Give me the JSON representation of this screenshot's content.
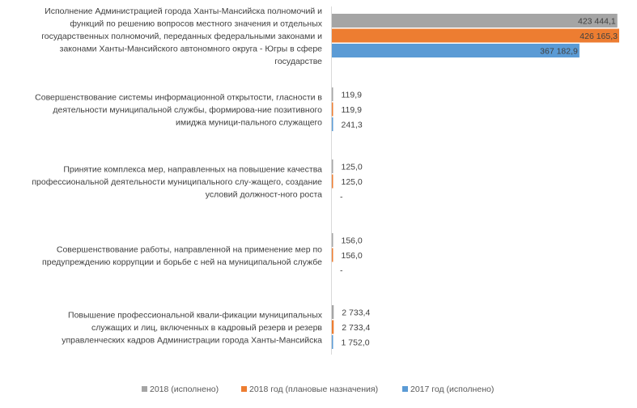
{
  "chart_data": {
    "type": "bar",
    "orientation": "horizontal",
    "categories": [
      "Исполнение Администрацией города Ханты-Мансийска полномочий и функций по решению вопросов местного значения и отдельных государственных полномочий, переданных федеральными законами и законами Ханты-Мансийского автономного округа - Югры в сфере государстве",
      "Совершенствование системы информационной открытости, гласности в деятельности муниципальной службы, формирова-ние позитивного имиджа муници-пального служащего",
      "Принятие комплекса мер, направленных на повышение качества профессиональной деятельности муниципального слу-жащего, создание условий должност-ного роста",
      "Совершенствование работы, направленной на применение мер по предупреждению коррупции и борьбе с ней на муниципальной службе",
      "Повышение профессиональной квали-фикации муниципальных служащих и лиц, включенных в кадровый резерв и резерв управленческих кадров Администрации города Ханты-Мансийска"
    ],
    "category_lines": [
      [
        "Исполнение Администрацией города Ханты-Мансийска полномочий и",
        "функций по решению вопросов местного значения и отдельных",
        "государственных полномочий, переданных федеральными законами и",
        "законами Ханты-Мансийского автономного округа - Югры в сфере",
        "государстве"
      ],
      [
        "Совершенствование системы информационной открытости, гласности в",
        "деятельности муниципальной службы, формирова-ние позитивного",
        "имиджа муници-пального служащего"
      ],
      [
        "Принятие комплекса мер, направленных на повышение качества",
        "профессиональной деятельности муниципального слу-жащего, создание",
        "условий должност-ного роста"
      ],
      [
        "Совершенствование работы, направленной на применение мер по",
        "предупреждению коррупции и борьбе с ней на муниципальной службе"
      ],
      [
        "Повышение профессиональной квали-фикации муниципальных",
        "служащих и лиц, включенных в кадровый резерв и резерв",
        "управленческих кадров Администрации города Ханты-Мансийска"
      ]
    ],
    "series": [
      {
        "name": "2018 (исполнено)",
        "color": "#a5a5a5",
        "values": [
          423444.1,
          119.9,
          125.0,
          156.0,
          2733.4
        ],
        "labels": [
          "423 444,1",
          "119,9",
          "125,0",
          "156,0",
          "2 733,4"
        ]
      },
      {
        "name": "2018 год (плановые назначения)",
        "color": "#ed7d31",
        "values": [
          426165.3,
          119.9,
          125.0,
          156.0,
          2733.4
        ],
        "labels": [
          "426 165,3",
          "119,9",
          "125,0",
          "156,0",
          "2 733,4"
        ]
      },
      {
        "name": "2017 год (исполнено)",
        "color": "#5b9bd5",
        "values": [
          367182.9,
          241.3,
          null,
          null,
          1752.0
        ],
        "labels": [
          "367 182,9",
          "241,3",
          "-",
          "-",
          "1 752,0"
        ]
      }
    ],
    "xlim": [
      0,
      426165.3
    ],
    "grid": false,
    "legend_position": "bottom"
  }
}
